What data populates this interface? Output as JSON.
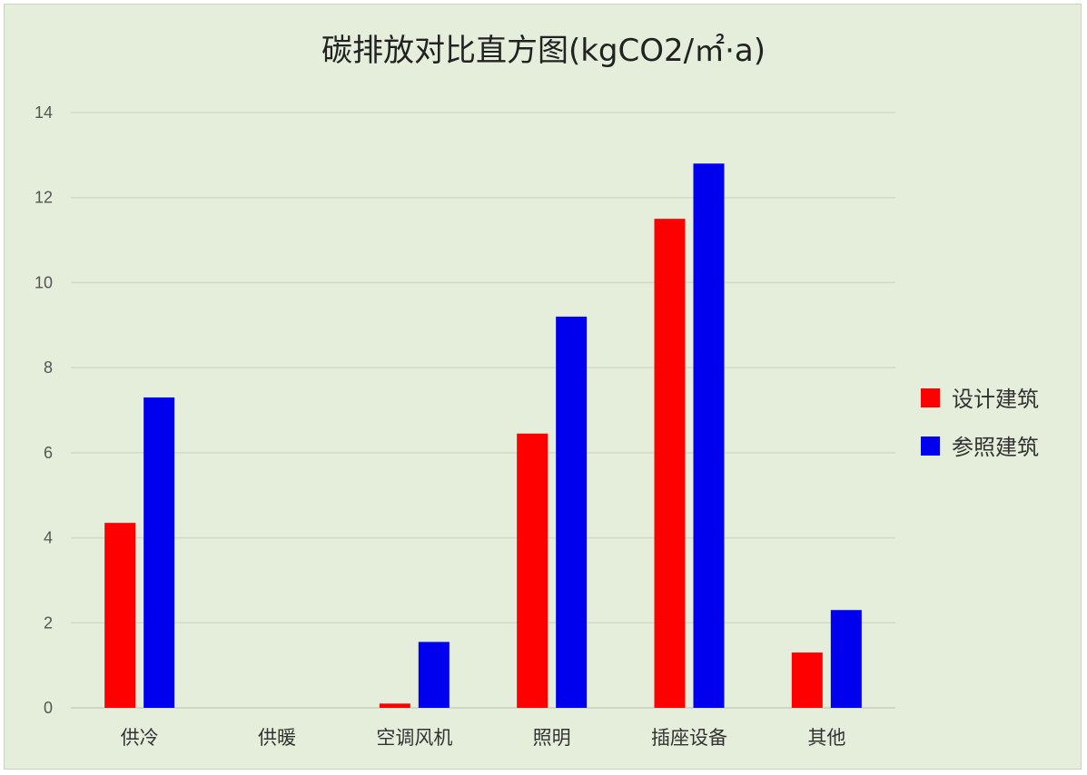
{
  "chart_data": {
    "type": "bar",
    "title": "碳排放对比直方图(kgCO2/㎡·a)",
    "categories": [
      "供冷",
      "供暖",
      "空调风机",
      "照明",
      "插座设备",
      "其他"
    ],
    "series": [
      {
        "name": "设计建筑",
        "color": "#ff0000",
        "values": [
          4.35,
          0,
          0.1,
          6.45,
          11.5,
          1.3
        ]
      },
      {
        "name": "参照建筑",
        "color": "#0000ee",
        "values": [
          7.3,
          0,
          1.55,
          9.2,
          12.8,
          2.3
        ]
      }
    ],
    "ylim": [
      0,
      14
    ],
    "yticks": [
      0,
      2,
      4,
      6,
      8,
      10,
      12,
      14
    ],
    "grid": true,
    "legend_position": "right",
    "background_color": "#e4eedb",
    "grid_color": "#d2dacc"
  }
}
